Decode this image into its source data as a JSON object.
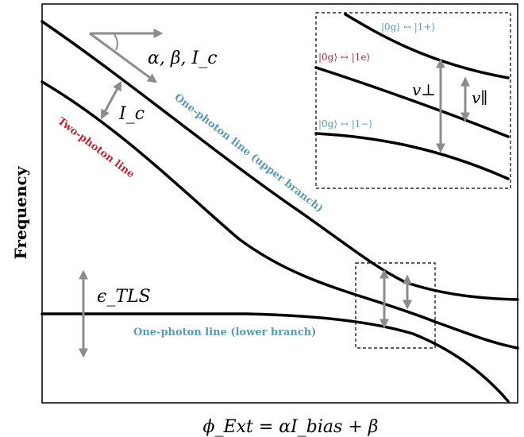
{
  "axes": {
    "ylabel": "Frequency",
    "xlabel": "ϕ_Ext = αI_bias + β"
  },
  "labels": {
    "params": "α, β, I_c",
    "coupling": "I_c",
    "epsilon": "ϵ_TLS",
    "two_photon": "Two-photon line",
    "one_photon_upper": "One-photon line (upper branch)",
    "one_photon_lower": "One-photon line (lower branch)"
  },
  "inset": {
    "state_plus": "|0g⟩ ↔ |1+⟩",
    "state_e": "|0g⟩ ↔ |1e⟩",
    "state_minus": "|0g⟩ ↔ |1−⟩",
    "v_perp": "v⊥",
    "v_par": "v∥"
  },
  "colors": {
    "line": "#000000",
    "arrow": "#8c8c8c",
    "two_photon": "#b5293b",
    "one_photon": "#5e98b3"
  }
}
